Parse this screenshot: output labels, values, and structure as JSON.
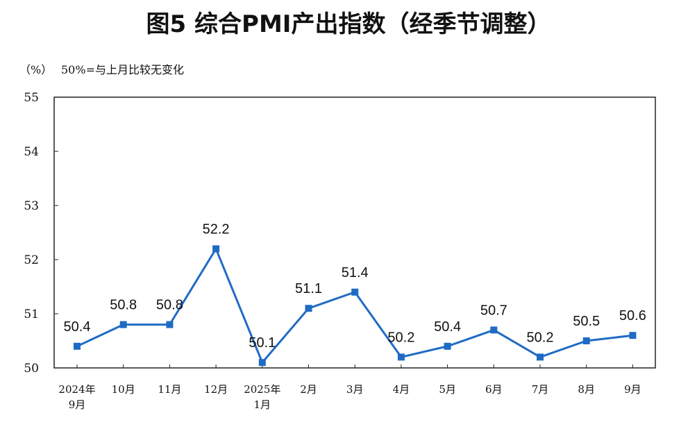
{
  "chart_data": {
    "type": "line",
    "title": "图5  综合PMI产出指数（经季节调整）",
    "unit_label": "（%）",
    "note": "50%=与上月比较无变化",
    "ylim": [
      50,
      55
    ],
    "yticks": [
      50,
      51,
      52,
      53,
      54,
      55
    ],
    "grid": false,
    "categories": [
      [
        "2024年",
        "9月"
      ],
      [
        "10月"
      ],
      [
        "11月"
      ],
      [
        "12月"
      ],
      [
        "2025年",
        "1月"
      ],
      [
        "2月"
      ],
      [
        "3月"
      ],
      [
        "4月"
      ],
      [
        "5月"
      ],
      [
        "6月"
      ],
      [
        "7月"
      ],
      [
        "8月"
      ],
      [
        "9月"
      ]
    ],
    "series": [
      {
        "values": [
          50.4,
          50.8,
          50.8,
          52.2,
          50.1,
          51.1,
          51.4,
          50.2,
          50.4,
          50.7,
          50.2,
          50.5,
          50.6
        ],
        "labels": [
          "50.4",
          "50.8",
          "50.8",
          "52.2",
          "50.1",
          "51.1",
          "51.4",
          "50.2",
          "50.4",
          "50.7",
          "50.2",
          "50.5",
          "50.6"
        ],
        "color": "#1f6bc4",
        "marker": "square"
      }
    ]
  }
}
